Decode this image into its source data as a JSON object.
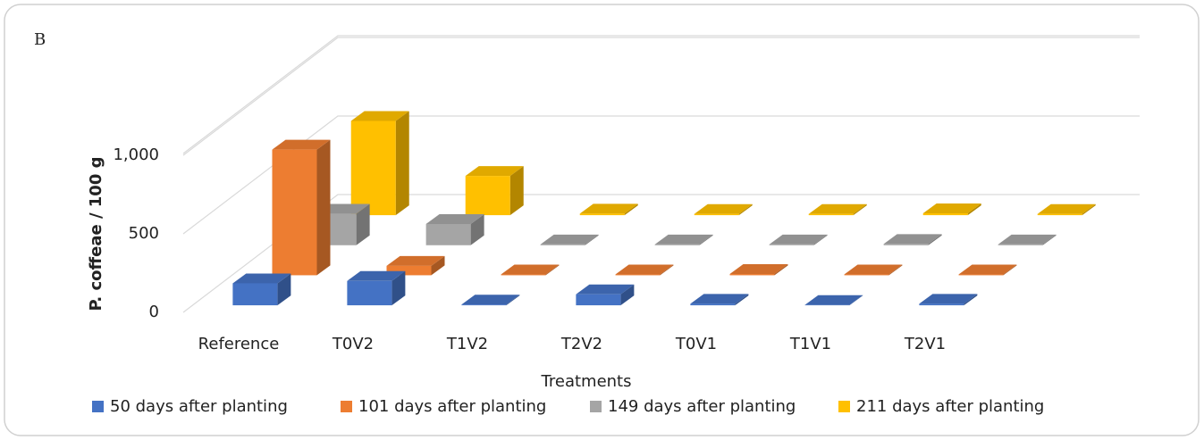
{
  "chart_data": {
    "type": "bar3d",
    "panel_label": "B",
    "y_label": "P. coffeae / 100 g",
    "x_label": "Treatments",
    "categories": [
      "Reference",
      "T0V2",
      "T1V2",
      "T2V2",
      "T0V1",
      "T1V1",
      "T2V1"
    ],
    "series": [
      {
        "name": "50 days after planting",
        "color": "#4472c4",
        "values": [
          140,
          155,
          5,
          70,
          10,
          2,
          10
        ]
      },
      {
        "name": "101 days after planting",
        "color": "#ed7d31",
        "values": [
          800,
          60,
          5,
          5,
          8,
          5,
          5
        ]
      },
      {
        "name": "149 days after planting",
        "color": "#a5a5a5",
        "values": [
          200,
          135,
          5,
          5,
          5,
          8,
          5
        ]
      },
      {
        "name": "211 days after planting",
        "color": "#ffc000",
        "values": [
          600,
          250,
          10,
          8,
          8,
          12,
          8
        ]
      }
    ],
    "ylim": [
      0,
      1000
    ],
    "yticks": [
      0,
      500,
      {
        "value": 1000,
        "label": "1,000"
      }
    ],
    "grid": true
  }
}
